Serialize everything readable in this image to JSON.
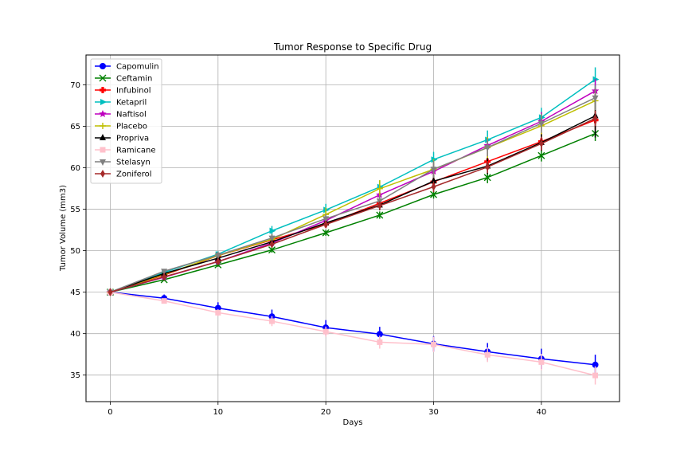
{
  "chart_data": {
    "type": "line",
    "title": "Tumor Response to Specific Drug",
    "xlabel": "Days",
    "ylabel": "Tumor Volume (mm3)",
    "xlim": [
      -2.25,
      47.25
    ],
    "ylim": [
      31.8,
      73.6
    ],
    "xticks": [
      0,
      10,
      20,
      30,
      40
    ],
    "yticks": [
      35,
      40,
      45,
      50,
      55,
      60,
      65,
      70
    ],
    "grid": true,
    "legend_position": "top-left",
    "x": [
      0,
      5,
      10,
      15,
      20,
      25,
      30,
      35,
      40,
      45
    ],
    "series": [
      {
        "name": "Capomulin",
        "color": "#0000ff",
        "marker": "circle",
        "values": [
          45.0,
          44.27,
          43.08,
          42.06,
          40.72,
          39.94,
          38.77,
          37.82,
          36.96,
          36.24
        ],
        "errors": [
          0,
          0.45,
          0.7,
          0.84,
          0.91,
          0.88,
          0.93,
          1.05,
          1.22,
          1.22
        ]
      },
      {
        "name": "Ceftamin",
        "color": "#008000",
        "marker": "x",
        "values": [
          45.0,
          46.5,
          48.29,
          50.09,
          52.16,
          54.29,
          56.77,
          58.83,
          61.47,
          64.13
        ],
        "errors": [
          0,
          0.16,
          0.24,
          0.33,
          0.36,
          0.44,
          0.49,
          0.69,
          0.71,
          0.9
        ]
      },
      {
        "name": "Infubinol",
        "color": "#ff0000",
        "marker": "plus-filled",
        "values": [
          45.0,
          47.06,
          49.4,
          51.3,
          53.2,
          55.72,
          58.3,
          60.74,
          63.16,
          65.76
        ],
        "errors": [
          0,
          0.24,
          0.28,
          0.36,
          0.44,
          0.55,
          0.63,
          0.98,
          1.06,
          1.14
        ]
      },
      {
        "name": "Ketapril",
        "color": "#00bfbf",
        "marker": "triangle-right",
        "values": [
          45.0,
          47.39,
          49.58,
          52.4,
          54.92,
          57.68,
          60.99,
          63.37,
          66.07,
          70.66
        ],
        "errors": [
          0,
          0.26,
          0.36,
          0.58,
          0.73,
          0.76,
          0.93,
          1.13,
          1.16,
          1.45
        ]
      },
      {
        "name": "Naftisol",
        "color": "#bf00bf",
        "marker": "star",
        "values": [
          45.0,
          46.8,
          48.69,
          50.93,
          53.64,
          56.73,
          59.56,
          62.69,
          65.6,
          69.27
        ],
        "errors": [
          0,
          0.2,
          0.35,
          0.45,
          0.59,
          0.81,
          0.97,
          1.01,
          1.12,
          1.42
        ]
      },
      {
        "name": "Placebo",
        "color": "#bfbf00",
        "marker": "plus",
        "values": [
          45.0,
          47.13,
          49.42,
          51.36,
          54.36,
          57.48,
          59.81,
          62.42,
          65.05,
          68.08
        ],
        "errors": [
          0,
          0.22,
          0.4,
          0.61,
          0.84,
          1.03,
          1.22,
          1.29,
          1.37,
          1.35
        ]
      },
      {
        "name": "Propriva",
        "color": "#000000",
        "marker": "triangle-up",
        "values": [
          45.0,
          47.25,
          49.1,
          51.07,
          53.35,
          55.5,
          58.39,
          60.2,
          63.04,
          66.26
        ],
        "errors": [
          0,
          0.23,
          0.38,
          0.47,
          0.55,
          0.63,
          0.75,
          0.97,
          1.01,
          2.61
        ]
      },
      {
        "name": "Ramicane",
        "color": "#ffc0cb",
        "marker": "square",
        "values": [
          45.0,
          43.94,
          42.53,
          41.5,
          40.24,
          38.97,
          38.7,
          37.45,
          36.57,
          34.96
        ],
        "errors": [
          0,
          0.28,
          0.4,
          0.6,
          0.61,
          0.78,
          0.93,
          0.88,
          0.98,
          1.1
        ]
      },
      {
        "name": "Stelasyn",
        "color": "#808080",
        "marker": "triangle-down",
        "values": [
          45.0,
          47.53,
          49.46,
          51.53,
          53.86,
          56.0,
          59.83,
          62.44,
          65.36,
          68.44
        ],
        "errors": [
          0,
          0.24,
          0.43,
          0.52,
          0.57,
          0.67,
          1.03,
          1.05,
          1.15,
          1.48
        ]
      },
      {
        "name": "Zoniferol",
        "color": "#a52a2a",
        "marker": "diamond",
        "values": [
          45.0,
          46.85,
          48.69,
          50.78,
          53.17,
          55.43,
          57.71,
          60.09,
          62.92,
          65.96
        ],
        "errors": [
          0,
          0.19,
          0.26,
          0.36,
          0.44,
          0.52,
          0.66,
          0.72,
          0.82,
          0.93
        ]
      }
    ]
  }
}
